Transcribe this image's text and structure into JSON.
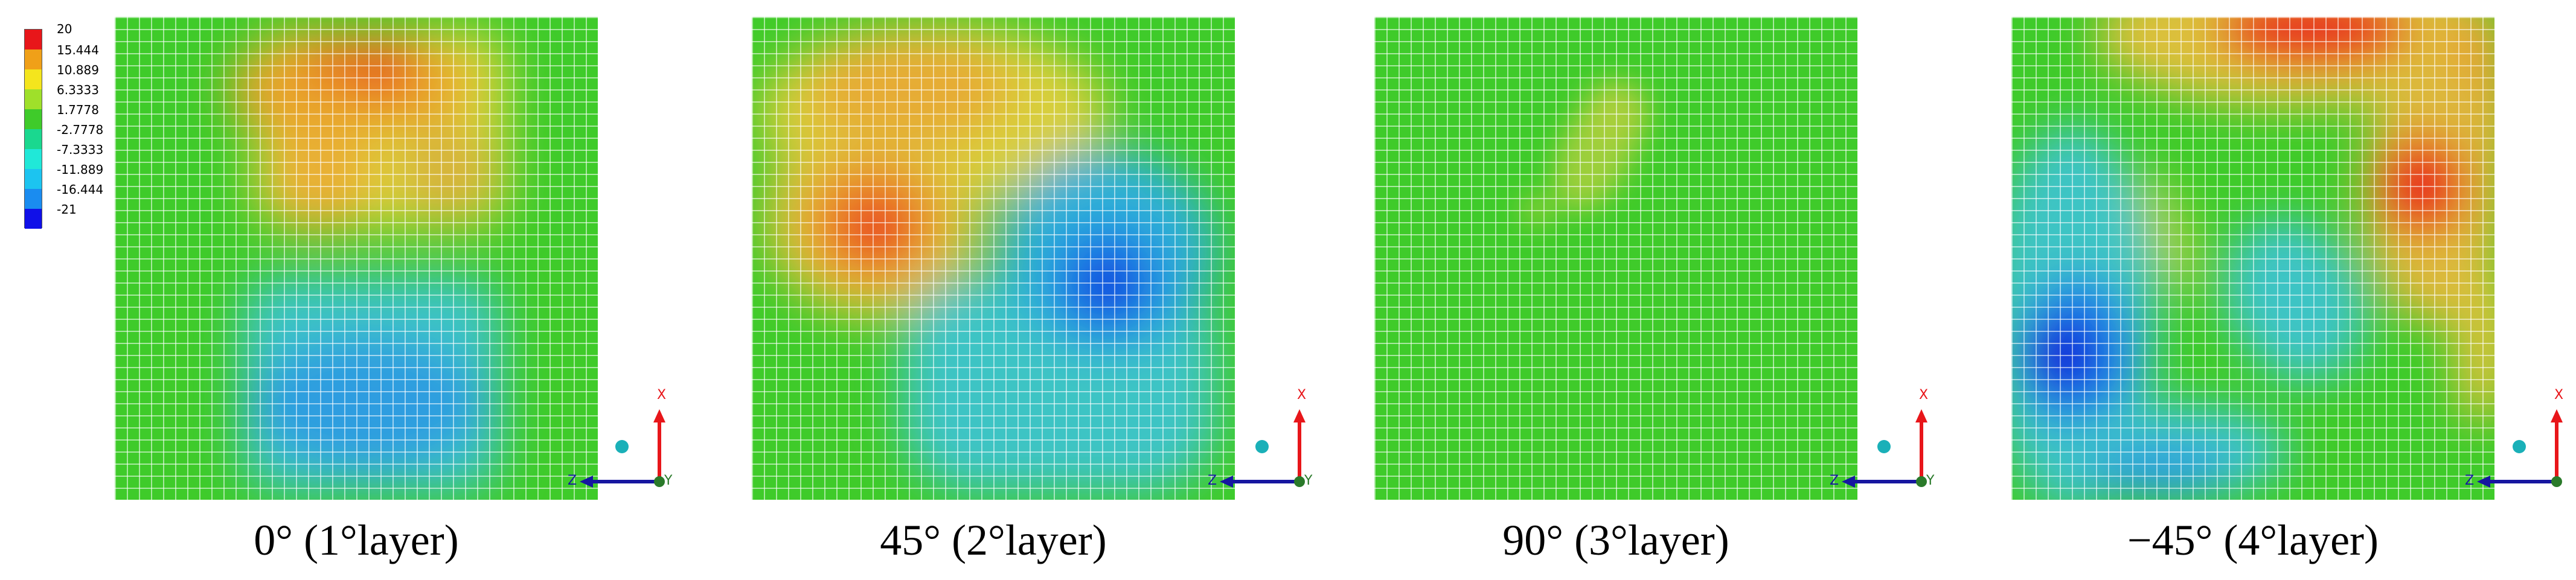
{
  "legend": {
    "ticks": [
      "20",
      "15.444",
      "10.889",
      "6.3333",
      "1.7778",
      "-2.7778",
      "-7.3333",
      "-11.889",
      "-16.444",
      "-21"
    ],
    "colors": [
      "#e8161a",
      "#f0a018",
      "#f4e51d",
      "#9fe02a",
      "#3fcb2a",
      "#1ad88f",
      "#20e8d8",
      "#1cc4f0",
      "#1a8cf0",
      "#1010e8"
    ]
  },
  "panels": [
    {
      "caption": "0° (1°layer)",
      "axes": {
        "x": "X",
        "z": "Z",
        "y": "Y"
      }
    },
    {
      "caption": "45° (2°layer)",
      "axes": {
        "x": "X",
        "z": "Z",
        "y": "Y"
      }
    },
    {
      "caption": "90° (3°layer)",
      "axes": {
        "x": "X",
        "z": "Z",
        "y": "Y"
      }
    },
    {
      "caption": "−45° (4°layer)",
      "axes": {
        "x": "X",
        "z": "Z",
        "y": "Y"
      }
    }
  ]
}
